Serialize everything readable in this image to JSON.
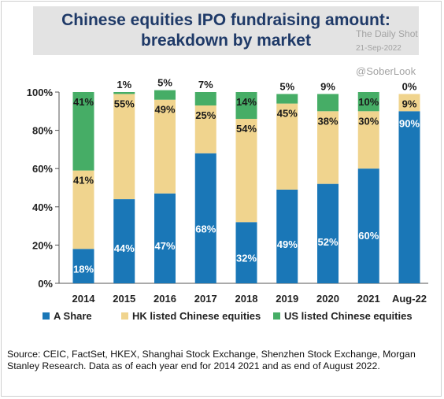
{
  "title_lines": [
    "Chinese equities IPO fundraising amount:",
    "breakdown by market"
  ],
  "watermark": {
    "brand": "The Daily Shot",
    "date": "21-Sep-2022",
    "handle": "@SoberLook"
  },
  "colors": {
    "a_share": "#1a77b7",
    "hk": "#f0d48e",
    "us": "#46ad66",
    "axis": "#555555",
    "title": "#1f3a68"
  },
  "chart_data": {
    "type": "bar",
    "stacked": true,
    "categories": [
      "2014",
      "2015",
      "2016",
      "2017",
      "2018",
      "2019",
      "2020",
      "2021",
      "Aug-22"
    ],
    "series": [
      {
        "name": "A Share",
        "values": [
          18,
          44,
          47,
          68,
          32,
          49,
          52,
          60,
          90
        ]
      },
      {
        "name": "HK listed Chinese equities",
        "values": [
          41,
          55,
          49,
          25,
          54,
          45,
          38,
          30,
          9
        ]
      },
      {
        "name": "US listed Chinese equities",
        "values": [
          41,
          1,
          5,
          7,
          14,
          5,
          9,
          10,
          0
        ]
      }
    ],
    "yticks": [
      "0%",
      "20%",
      "40%",
      "60%",
      "80%",
      "100%"
    ],
    "ylim": [
      0,
      100
    ],
    "legend_position": "bottom"
  },
  "source": "Source: CEIC, FactSet, HKEX, Shanghai Stock Exchange, Shenzhen Stock Exchange, Morgan Stanley Research. Data as of each year end for 2014 2021 and as end of August 2022."
}
